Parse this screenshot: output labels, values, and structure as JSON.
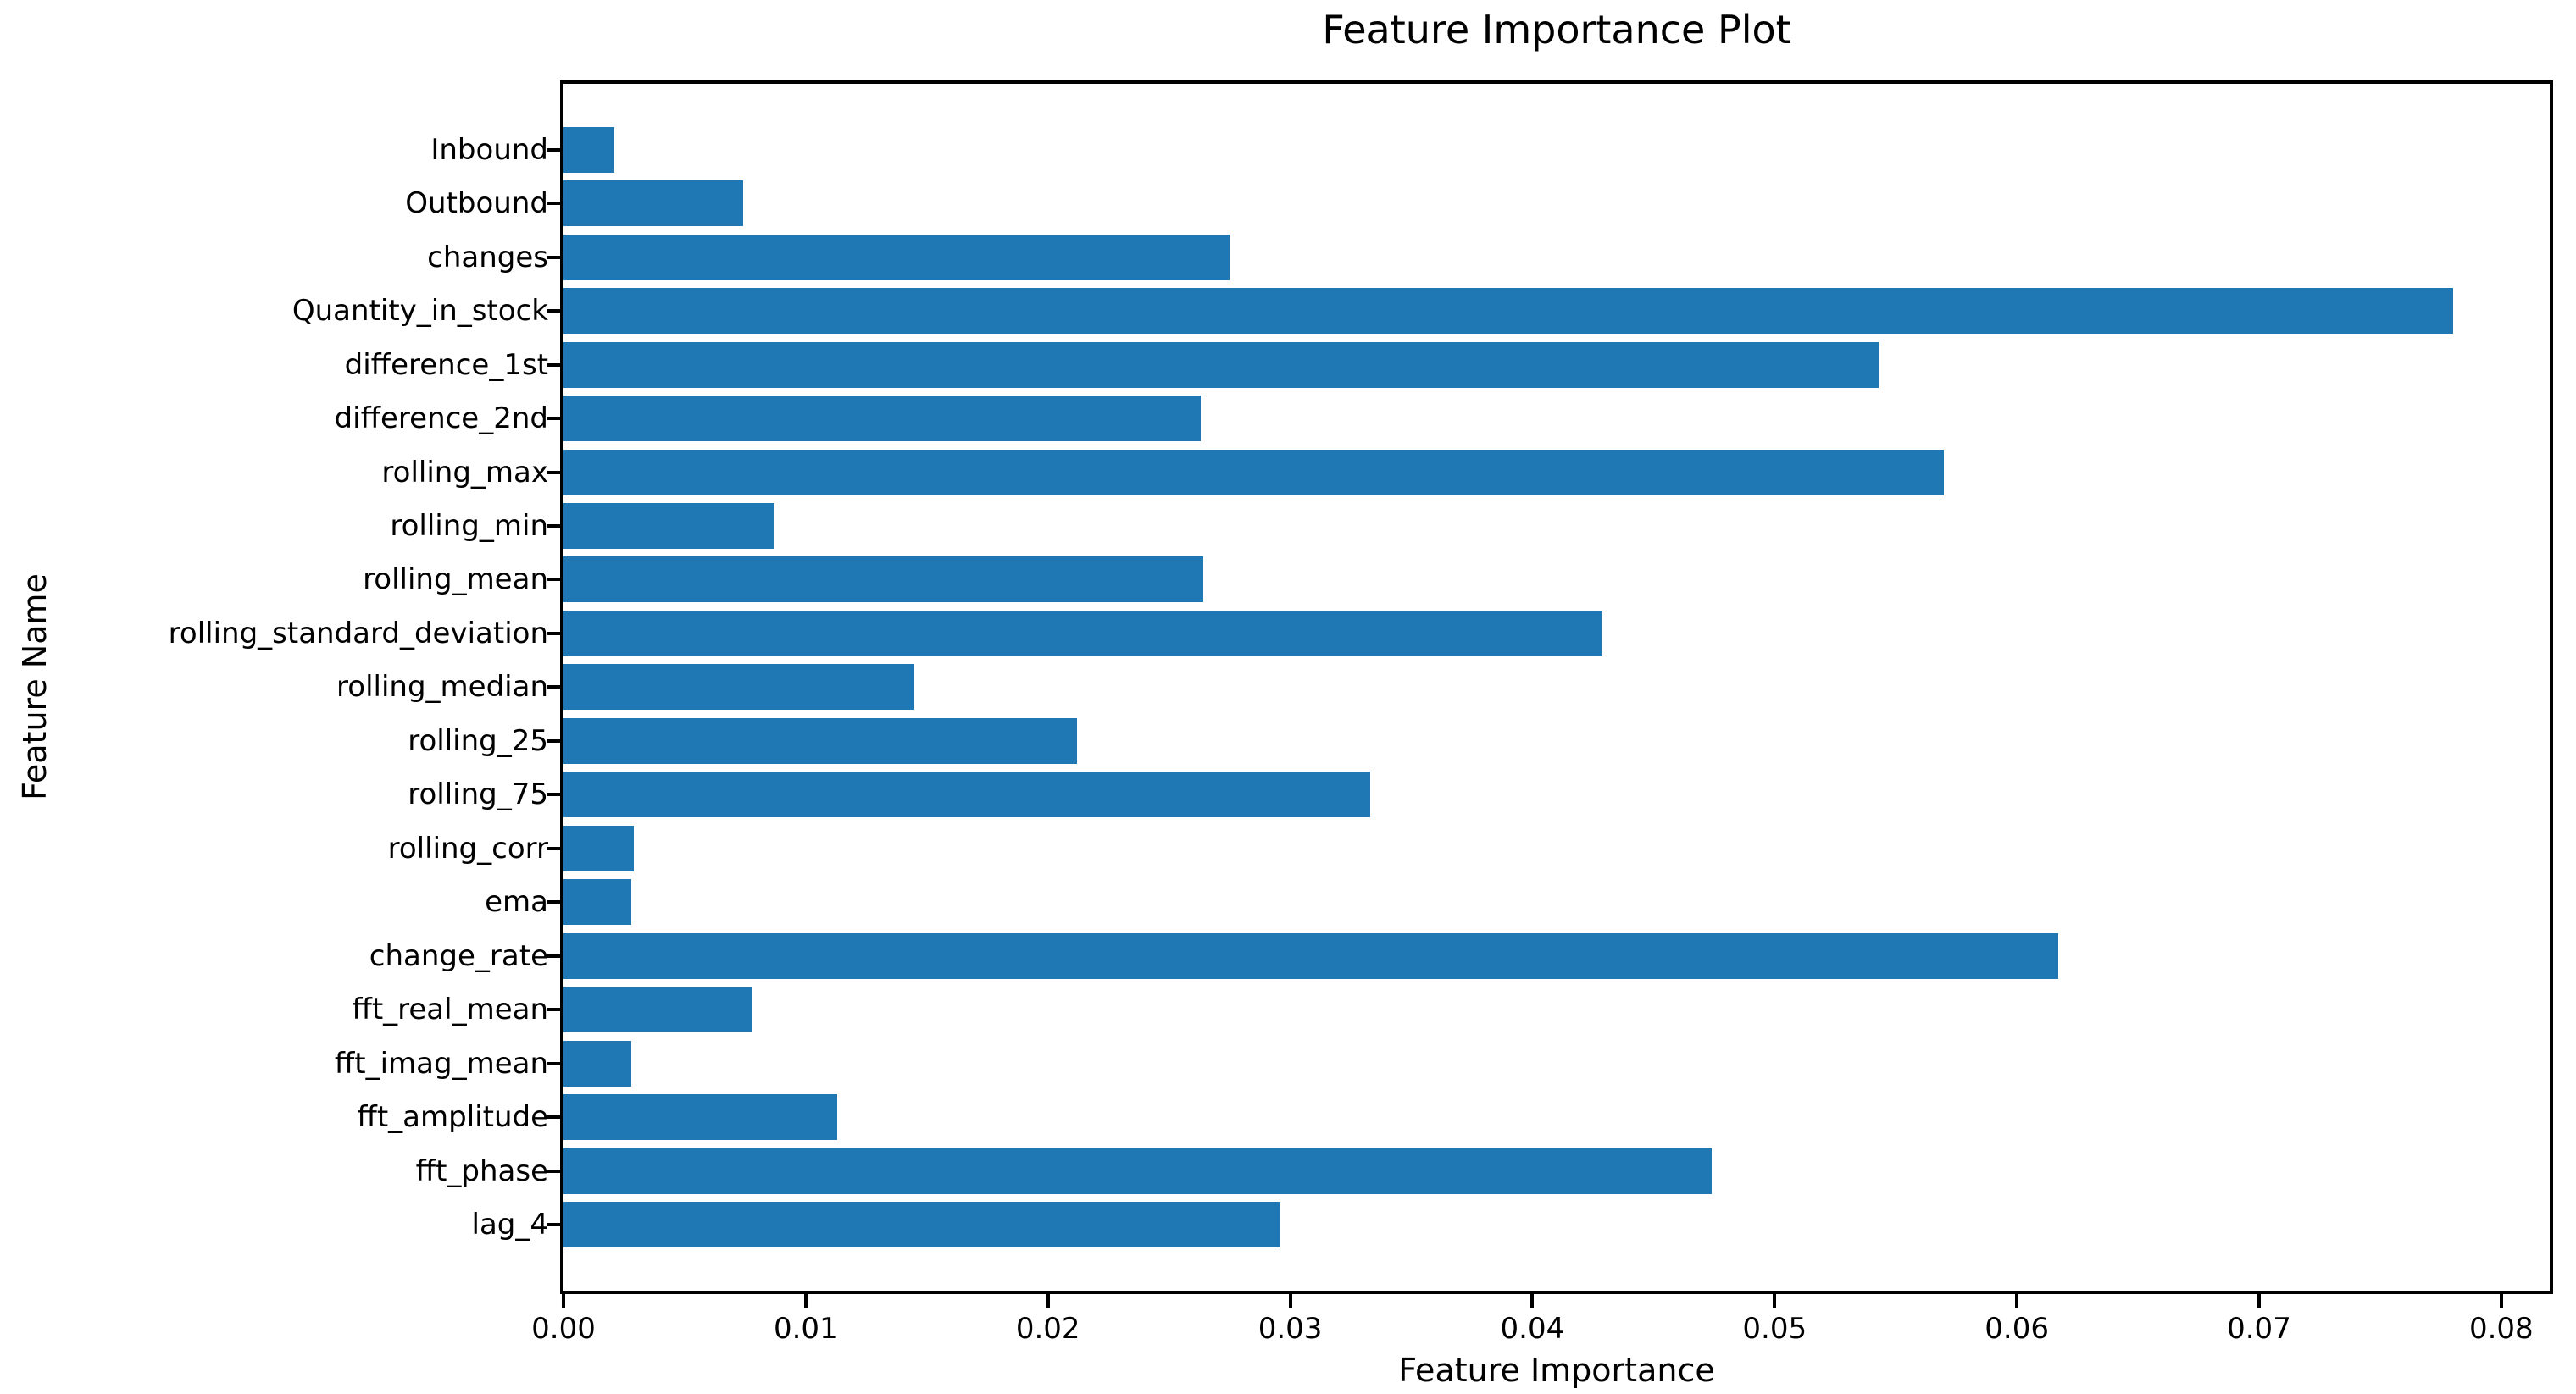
{
  "chart_data": {
    "type": "bar",
    "orientation": "horizontal",
    "title": "Feature Importance Plot",
    "xlabel": "Feature Importance",
    "ylabel": "Feature Name",
    "categories": [
      "Inbound",
      "Outbound",
      "changes",
      "Quantity_in_stock",
      "difference_1st",
      "difference_2nd",
      "rolling_max",
      "rolling_min",
      "rolling_mean",
      "rolling_standard_deviation",
      "rolling_median",
      "rolling_25",
      "rolling_75",
      "rolling_corr",
      "ema",
      "change_rate",
      "fft_real_mean",
      "fft_imag_mean",
      "fft_amplitude",
      "fft_phase",
      "lag_4"
    ],
    "values": [
      0.0021,
      0.0074,
      0.0275,
      0.078,
      0.0543,
      0.0263,
      0.057,
      0.0087,
      0.0264,
      0.0429,
      0.0145,
      0.0212,
      0.0333,
      0.0029,
      0.0028,
      0.0617,
      0.0078,
      0.0028,
      0.0113,
      0.0474,
      0.0296
    ],
    "xticks": [
      0.0,
      0.01,
      0.02,
      0.03,
      0.04,
      0.05,
      0.06,
      0.07,
      0.08
    ],
    "xtick_labels": [
      "0.00",
      "0.01",
      "0.02",
      "0.03",
      "0.04",
      "0.05",
      "0.06",
      "0.07",
      "0.08"
    ],
    "xlim": [
      0,
      0.082
    ],
    "grid": false,
    "legend_position": "none",
    "bar_color": "#1f77b4",
    "spine_color": "#000000",
    "background_color": "#ffffff"
  }
}
